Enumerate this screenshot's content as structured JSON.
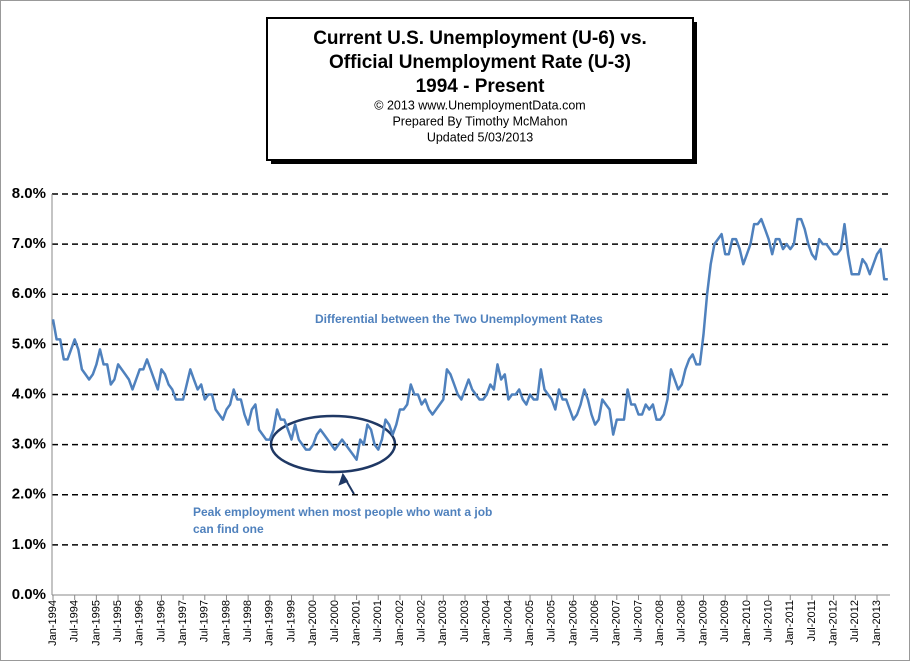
{
  "chart_data": {
    "type": "line",
    "title": [
      "Current U.S. Unemployment (U-6) vs.",
      "Official Unemployment Rate (U-3)",
      "1994 - Present"
    ],
    "subtitle": [
      "© 2013  www.UnemploymentData.com",
      "Prepared  By Timothy McMahon",
      "Updated  5/03/2013"
    ],
    "annotations": [
      "Differential between the Two Unemployment Rates",
      "Peak employment when most people who want a job",
      "can find one"
    ],
    "color": "#4f81bd",
    "ylim": [
      0,
      8
    ],
    "yticks": [
      {
        "value": 0,
        "label": "0.0%"
      },
      {
        "value": 1,
        "label": "1.0%"
      },
      {
        "value": 2,
        "label": "2.0%"
      },
      {
        "value": 3,
        "label": "3.0%"
      },
      {
        "value": 4,
        "label": "4.0%"
      },
      {
        "value": 5,
        "label": "5.0%"
      },
      {
        "value": 6,
        "label": "6.0%"
      },
      {
        "value": 7,
        "label": "7.0%"
      },
      {
        "value": 8,
        "label": "8.0%"
      }
    ],
    "grid": true,
    "categories": [
      "Jan-1994",
      null,
      null,
      null,
      null,
      null,
      "Jul-1994",
      null,
      null,
      null,
      null,
      null,
      "Jan-1995",
      null,
      null,
      null,
      null,
      null,
      "Jul-1995",
      null,
      null,
      null,
      null,
      null,
      "Jan-1996",
      null,
      null,
      null,
      null,
      null,
      "Jul-1996",
      null,
      null,
      null,
      null,
      null,
      "Jan-1997",
      null,
      null,
      null,
      null,
      null,
      "Jul-1997",
      null,
      null,
      null,
      null,
      null,
      "Jan-1998",
      null,
      null,
      null,
      null,
      null,
      "Jul-1998",
      null,
      null,
      null,
      null,
      null,
      "Jan-1999",
      null,
      null,
      null,
      null,
      null,
      "Jul-1999",
      null,
      null,
      null,
      null,
      null,
      "Jan-2000",
      null,
      null,
      null,
      null,
      null,
      "Jul-2000",
      null,
      null,
      null,
      null,
      null,
      "Jan-2001",
      null,
      null,
      null,
      null,
      null,
      "Jul-2001",
      null,
      null,
      null,
      null,
      null,
      "Jan-2002",
      null,
      null,
      null,
      null,
      null,
      "Jul-2002",
      null,
      null,
      null,
      null,
      null,
      "Jan-2003",
      null,
      null,
      null,
      null,
      null,
      "Jul-2003",
      null,
      null,
      null,
      null,
      null,
      "Jan-2004",
      null,
      null,
      null,
      null,
      null,
      "Jul-2004",
      null,
      null,
      null,
      null,
      null,
      "Jan-2005",
      null,
      null,
      null,
      null,
      null,
      "Jul-2005",
      null,
      null,
      null,
      null,
      null,
      "Jan-2006",
      null,
      null,
      null,
      null,
      null,
      "Jul-2006",
      null,
      null,
      null,
      null,
      null,
      "Jan-2007",
      null,
      null,
      null,
      null,
      null,
      "Jul-2007",
      null,
      null,
      null,
      null,
      null,
      "Jan-2008",
      null,
      null,
      null,
      null,
      null,
      "Jul-2008",
      null,
      null,
      null,
      null,
      null,
      "Jan-2009",
      null,
      null,
      null,
      null,
      null,
      "Jul-2009",
      null,
      null,
      null,
      null,
      null,
      "Jan-2010",
      null,
      null,
      null,
      null,
      null,
      "Jul-2010",
      null,
      null,
      null,
      null,
      null,
      "Jan-2011",
      null,
      null,
      null,
      null,
      null,
      "Jul-2011",
      null,
      null,
      null,
      null,
      null,
      "Jan-2012",
      null,
      null,
      null,
      null,
      null,
      "Jul-2012",
      null,
      null,
      null,
      null,
      null,
      "Jan-2013",
      null,
      null,
      null
    ],
    "values": [
      5.5,
      5.1,
      5.1,
      4.7,
      4.7,
      4.9,
      5.1,
      4.9,
      4.5,
      4.4,
      4.3,
      4.4,
      4.6,
      4.9,
      4.6,
      4.6,
      4.2,
      4.3,
      4.6,
      4.5,
      4.4,
      4.3,
      4.1,
      4.3,
      4.5,
      4.5,
      4.7,
      4.5,
      4.3,
      4.1,
      4.5,
      4.4,
      4.2,
      4.1,
      3.9,
      3.9,
      3.9,
      4.2,
      4.5,
      4.3,
      4.1,
      4.2,
      3.9,
      4.0,
      4.0,
      3.7,
      3.6,
      3.5,
      3.7,
      3.8,
      4.1,
      3.9,
      3.9,
      3.6,
      3.4,
      3.7,
      3.8,
      3.3,
      3.2,
      3.1,
      3.1,
      3.3,
      3.7,
      3.5,
      3.5,
      3.3,
      3.1,
      3.4,
      3.1,
      3.0,
      2.9,
      2.9,
      3.0,
      3.2,
      3.3,
      3.2,
      3.1,
      3.0,
      2.9,
      3.0,
      3.1,
      3.0,
      2.9,
      2.8,
      2.7,
      3.1,
      3.0,
      3.4,
      3.3,
      3.0,
      2.9,
      3.1,
      3.5,
      3.4,
      3.2,
      3.4,
      3.7,
      3.7,
      3.8,
      4.2,
      4.0,
      4.0,
      3.8,
      3.9,
      3.7,
      3.6,
      3.7,
      3.8,
      3.9,
      4.5,
      4.4,
      4.2,
      4.0,
      3.9,
      4.1,
      4.3,
      4.1,
      4.0,
      3.9,
      3.9,
      4.0,
      4.2,
      4.1,
      4.6,
      4.3,
      4.4,
      3.9,
      4.0,
      4.0,
      4.1,
      3.9,
      3.8,
      4.0,
      3.9,
      3.9,
      4.5,
      4.1,
      4.0,
      3.9,
      3.7,
      4.1,
      3.9,
      3.9,
      3.7,
      3.5,
      3.6,
      3.8,
      4.1,
      3.9,
      3.6,
      3.4,
      3.5,
      3.9,
      3.8,
      3.7,
      3.2,
      3.5,
      3.5,
      3.5,
      4.1,
      3.8,
      3.8,
      3.6,
      3.6,
      3.8,
      3.7,
      3.8,
      3.5,
      3.5,
      3.6,
      3.9,
      4.5,
      4.3,
      4.1,
      4.2,
      4.5,
      4.7,
      4.8,
      4.6,
      4.6,
      5.2,
      6.0,
      6.6,
      7.0,
      7.1,
      7.2,
      6.8,
      6.8,
      7.1,
      7.1,
      6.9,
      6.6,
      6.8,
      7.0,
      7.4,
      7.4,
      7.5,
      7.3,
      7.1,
      6.8,
      7.1,
      7.1,
      6.9,
      7.0,
      6.9,
      7.0,
      7.5,
      7.5,
      7.3,
      7.0,
      6.8,
      6.7,
      7.1,
      7.0,
      7.0,
      6.9,
      6.8,
      6.8,
      6.9,
      7.4,
      6.8,
      6.4,
      6.4,
      6.4,
      6.7,
      6.6,
      6.4,
      6.6,
      6.8,
      6.9,
      6.3,
      6.3
    ]
  }
}
